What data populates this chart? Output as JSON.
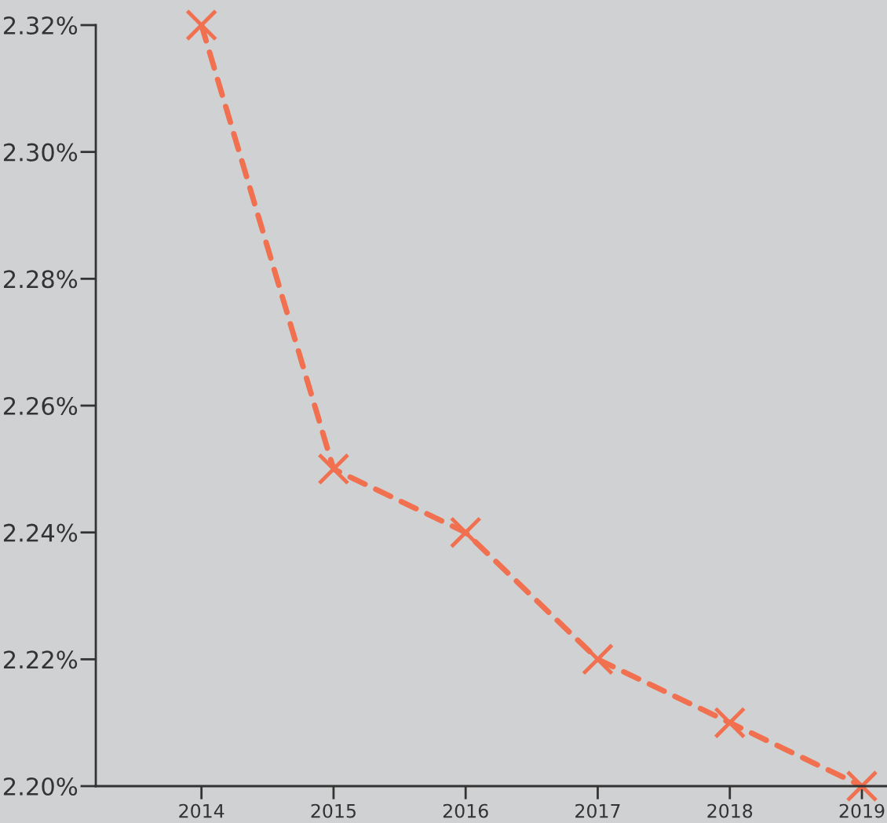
{
  "chart_data": {
    "type": "line",
    "categories": [
      "2014",
      "2015",
      "2016",
      "2017",
      "2018",
      "2019"
    ],
    "series": [
      {
        "color": "#f07050",
        "values": [
          2.32,
          2.25,
          2.24,
          2.22,
          2.21,
          2.2
        ]
      }
    ],
    "ylim": [
      2.2,
      2.32
    ],
    "yticks": [
      {
        "value": 2.2,
        "label": "2.20%"
      },
      {
        "value": 2.22,
        "label": "2.22%"
      },
      {
        "value": 2.24,
        "label": "2.24%"
      },
      {
        "value": 2.26,
        "label": "2.26%"
      },
      {
        "value": 2.28,
        "label": "2.28%"
      },
      {
        "value": 2.3,
        "label": "2.30%"
      },
      {
        "value": 2.32,
        "label": "2.32%"
      }
    ],
    "marker": "cross",
    "line_style": "dashed",
    "grid": false
  }
}
